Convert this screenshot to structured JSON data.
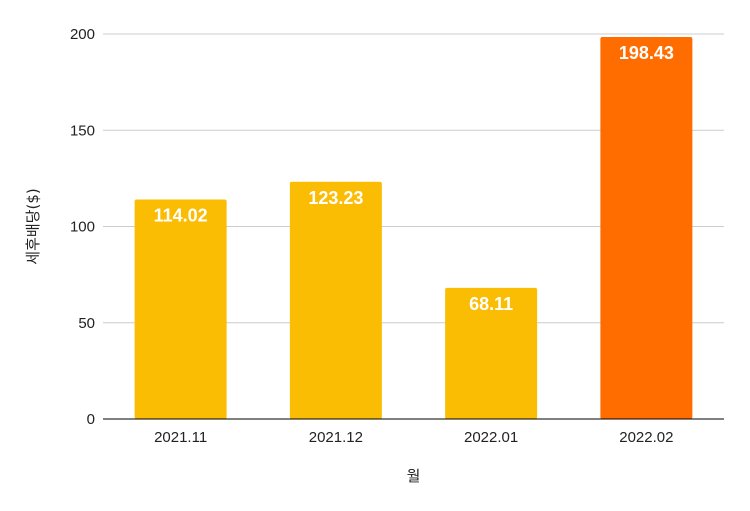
{
  "chart_data": {
    "type": "bar",
    "categories": [
      "2021.11",
      "2021.12",
      "2022.01",
      "2022.02"
    ],
    "values": [
      114.02,
      123.23,
      68.11,
      198.43
    ],
    "value_labels": [
      "114.02",
      "123.23",
      "68.11",
      "198.43"
    ],
    "bar_colors": [
      "#fbbc04",
      "#fbbc04",
      "#fbbc04",
      "#ff6d01"
    ],
    "xlabel": "월",
    "ylabel": "세후배당($)",
    "ylim": [
      0,
      200
    ],
    "yticks": [
      0,
      50,
      100,
      150,
      200
    ],
    "grid": true,
    "gridline_color": "#cccccc",
    "axis_color": "#000000"
  }
}
